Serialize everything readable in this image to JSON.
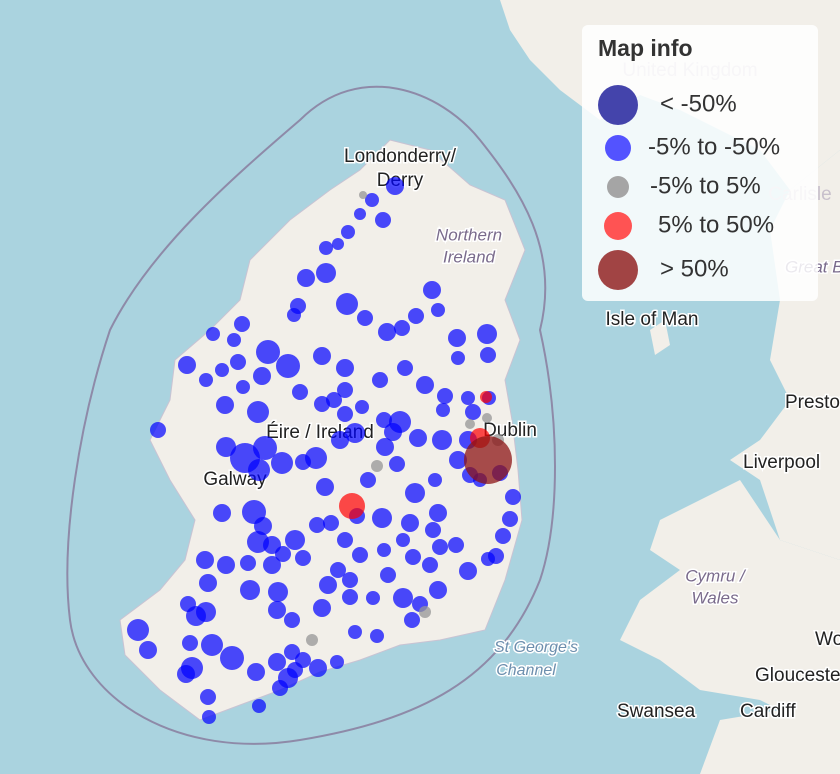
{
  "legend": {
    "title": "Map info",
    "items": [
      {
        "label": "< -50%",
        "color": "#3a3aa6"
      },
      {
        "label": "-5% to -50%",
        "color": "#4a4aff"
      },
      {
        "label": "-5% to 5%",
        "color": "#a0a0a0"
      },
      {
        "label": "5% to 50%",
        "color": "#ff4a4a"
      },
      {
        "label": "> 50%",
        "color": "#9c3a3a"
      }
    ]
  },
  "places": [
    "Londonderry/",
    "Derry",
    "Northern",
    "Ireland",
    "Éire / Ireland",
    "Dublin",
    "Galway",
    "United Kingdom",
    "Carlisle",
    "Great Britain",
    "Isle of Man",
    "Preston",
    "Liverpool",
    "Cymru /",
    "Wales",
    "St George's",
    "Channel",
    "Swansea",
    "Cardiff",
    "Gloucester",
    "Worcester"
  ]
}
